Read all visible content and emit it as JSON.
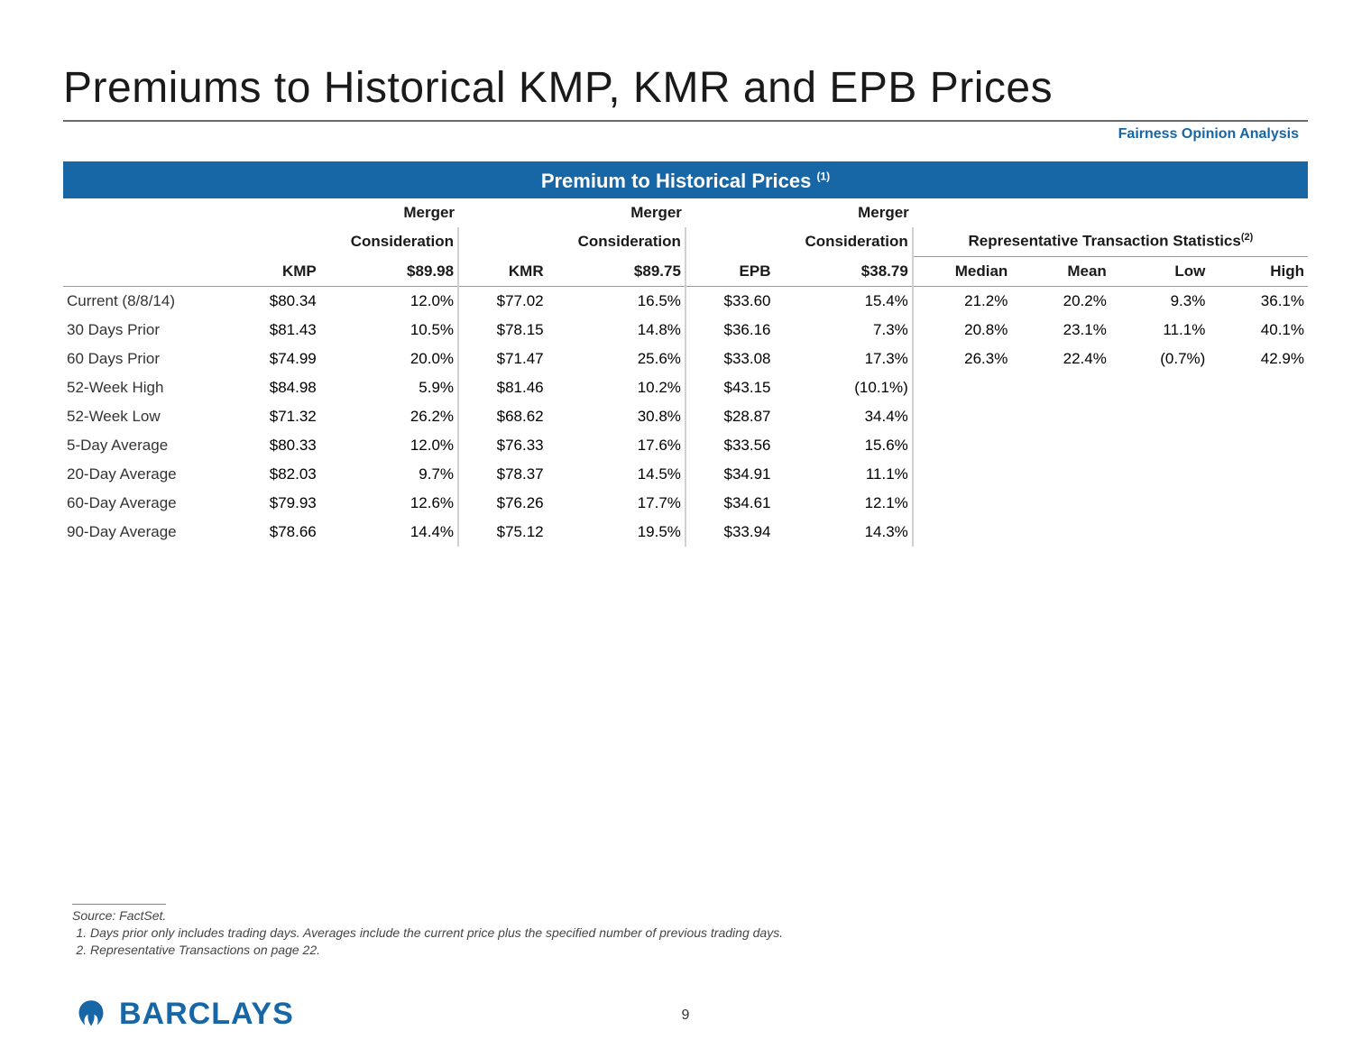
{
  "title": "Premiums to Historical KMP, KMR and EPB Prices",
  "subtitle": "Fairness Opinion Analysis",
  "banner": "Premium to Historical Prices",
  "banner_sup": "(1)",
  "columns": {
    "kmp": "KMP",
    "kmr": "KMR",
    "epb": "EPB",
    "merger_line1": "Merger",
    "merger_line2": "Consideration",
    "mc_kmp": "$89.98",
    "mc_kmr": "$89.75",
    "mc_epb": "$38.79",
    "stats_header": "Representative Transaction Statistics",
    "stats_sup": "(2)",
    "median": "Median",
    "mean": "Mean",
    "low": "Low",
    "high": "High"
  },
  "rows": [
    {
      "label": "Current (8/8/14)",
      "kmp": "$80.34",
      "kmp_pct": "12.0%",
      "kmr": "$77.02",
      "kmr_pct": "16.5%",
      "epb": "$33.60",
      "epb_pct": "15.4%",
      "median": "21.2%",
      "mean": "20.2%",
      "low": "9.3%",
      "high": "36.1%",
      "gap": false
    },
    {
      "label": "30 Days Prior",
      "kmp": "$81.43",
      "kmp_pct": "10.5%",
      "kmr": "$78.15",
      "kmr_pct": "14.8%",
      "epb": "$36.16",
      "epb_pct": "7.3%",
      "median": "20.8%",
      "mean": "23.1%",
      "low": "11.1%",
      "high": "40.1%",
      "gap": true
    },
    {
      "label": "60 Days Prior",
      "kmp": "$74.99",
      "kmp_pct": "20.0%",
      "kmr": "$71.47",
      "kmr_pct": "25.6%",
      "epb": "$33.08",
      "epb_pct": "17.3%",
      "median": "26.3%",
      "mean": "22.4%",
      "low": "(0.7%)",
      "high": "42.9%",
      "gap": false
    },
    {
      "label": "52-Week High",
      "kmp": "$84.98",
      "kmp_pct": "5.9%",
      "kmr": "$81.46",
      "kmr_pct": "10.2%",
      "epb": "$43.15",
      "epb_pct": "(10.1%)",
      "median": "",
      "mean": "",
      "low": "",
      "high": "",
      "gap": true
    },
    {
      "label": "52-Week Low",
      "kmp": "$71.32",
      "kmp_pct": "26.2%",
      "kmr": "$68.62",
      "kmr_pct": "30.8%",
      "epb": "$28.87",
      "epb_pct": "34.4%",
      "median": "",
      "mean": "",
      "low": "",
      "high": "",
      "gap": false
    },
    {
      "label": "5-Day Average",
      "kmp": "$80.33",
      "kmp_pct": "12.0%",
      "kmr": "$76.33",
      "kmr_pct": "17.6%",
      "epb": "$33.56",
      "epb_pct": "15.6%",
      "median": "",
      "mean": "",
      "low": "",
      "high": "",
      "gap": true
    },
    {
      "label": "20-Day Average",
      "kmp": "$82.03",
      "kmp_pct": "9.7%",
      "kmr": "$78.37",
      "kmr_pct": "14.5%",
      "epb": "$34.91",
      "epb_pct": "11.1%",
      "median": "",
      "mean": "",
      "low": "",
      "high": "",
      "gap": false
    },
    {
      "label": "60-Day Average",
      "kmp": "$79.93",
      "kmp_pct": "12.6%",
      "kmr": "$76.26",
      "kmr_pct": "17.7%",
      "epb": "$34.61",
      "epb_pct": "12.1%",
      "median": "",
      "mean": "",
      "low": "",
      "high": "",
      "gap": false
    },
    {
      "label": "90-Day Average",
      "kmp": "$78.66",
      "kmp_pct": "14.4%",
      "kmr": "$75.12",
      "kmr_pct": "19.5%",
      "epb": "$33.94",
      "epb_pct": "14.3%",
      "median": "",
      "mean": "",
      "low": "",
      "high": "",
      "gap": false
    }
  ],
  "footnotes": {
    "source": "Source: FactSet.",
    "n1": "Days prior only includes trading days. Averages include the current price plus the specified number of previous trading days.",
    "n2": "Representative Transactions on page 22."
  },
  "logo_text": "BARCLAYS",
  "page_number": "9",
  "colors": {
    "banner_bg": "#1766a6",
    "brand": "#1766a6"
  }
}
